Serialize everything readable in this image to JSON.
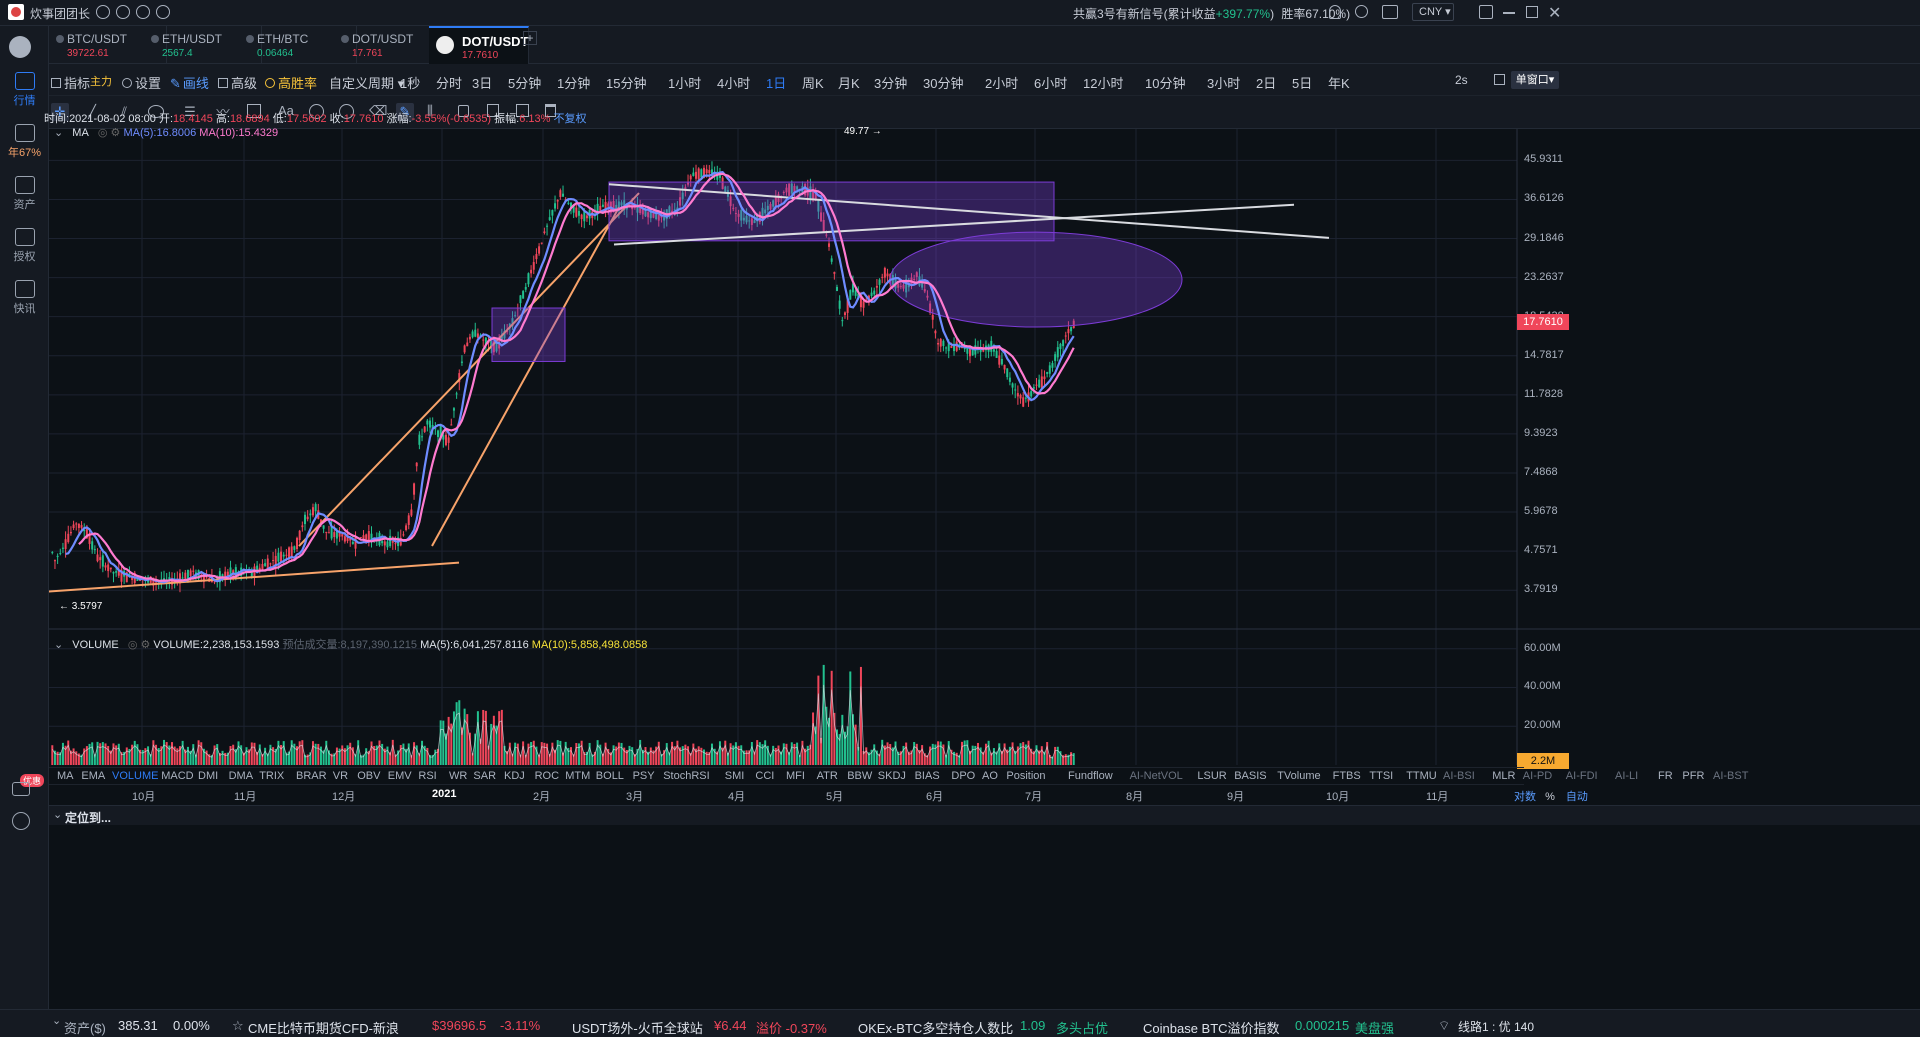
{
  "topbar": {
    "title": "炊事团团长",
    "signal": "共赢3号有新信号(累计收益",
    "signal_gain": "+397.77%",
    "signal_close": ")",
    "winrate": "胜率67.10%)",
    "currency": "CNY"
  },
  "sidebar": {
    "items": [
      {
        "label": "行情"
      },
      {
        "label": "年67%"
      },
      {
        "label": "资产"
      },
      {
        "label": "授权"
      },
      {
        "label": "快讯"
      }
    ],
    "bottom_badge": "优惠"
  },
  "tabs": [
    {
      "name": "BTC/USDT",
      "price": "39722.61",
      "color": "#f0465a"
    },
    {
      "name": "ETH/USDT",
      "price": "2567.4",
      "color": "#22c18f"
    },
    {
      "name": "ETH/BTC",
      "price": "0.06464",
      "color": "#22c18f"
    },
    {
      "name": "DOT/USDT",
      "price": "17.761",
      "color": "#f0465a"
    },
    {
      "name": "DOT/USDT",
      "price": "17.7610",
      "color": "#f0465a"
    }
  ],
  "toolbar1": {
    "indicator": "指标",
    "main": "主力",
    "settings": "设置",
    "draw": "画线",
    "advanced": "高级",
    "winrate": "高胜率",
    "custom_period": "自定义周期",
    "periods": [
      "1秒",
      "分时",
      "3日",
      "5分钟",
      "1分钟",
      "15分钟",
      "1小时",
      "4小时",
      "1日",
      "周K",
      "月K",
      "3分钟",
      "30分钟",
      "2小时",
      "6小时",
      "12小时",
      "10分钟",
      "3小时",
      "2日",
      "5日",
      "年K"
    ],
    "active_period": "1日",
    "refresh": "2s",
    "window": "单窗口"
  },
  "info_line": {
    "time_label": "时间:",
    "time": "2021-08-02 08:00",
    "open_label": "开:",
    "open": "18.4145",
    "high_label": "高:",
    "high": "18.6894",
    "low_label": "低:",
    "low": "17.5602",
    "close_label": "收:",
    "close": "17.7610",
    "change_label": "涨幅:",
    "change": "-3.55%(-0.6535)",
    "amp_label": "振幅:",
    "amp": "6.13%",
    "adjust": "不复权"
  },
  "ma_line": {
    "name": "MA",
    "ma5": "MA(5):16.8006",
    "ma10": "MA(10):15.4329"
  },
  "vol_line": {
    "name": "VOLUME",
    "vol": "VOLUME:2,238,153.1593",
    "estimate": "预估成交量:8,197,390.1215",
    "ma5": "MA(5):6,041,257.8116",
    "ma10": "MA(10):5,858,498.0858"
  },
  "price_axis": [
    "45.9311",
    "36.6126",
    "29.1846",
    "23.2637",
    "18.5438",
    "14.7817",
    "11.7828",
    "9.3923",
    "7.4868",
    "5.9678",
    "4.7571",
    "3.7919"
  ],
  "current_price": "17.7610",
  "annotations": {
    "high": "49.77",
    "low": "3.5797"
  },
  "volume_axis": [
    "60.00M",
    "40.00M",
    "20.00M"
  ],
  "current_volume": "2.2M",
  "indicators": [
    "MA",
    "EMA",
    "VOLUME",
    "MACD",
    "DMI",
    "DMA",
    "TRIX",
    "BRAR",
    "VR",
    "OBV",
    "EMV",
    "RSI",
    "WR",
    "SAR",
    "KDJ",
    "ROC",
    "MTM",
    "BOLL",
    "PSY",
    "StochRSI",
    "SMI",
    "CCI",
    "MFI",
    "ATR",
    "BBW",
    "SKDJ",
    "BIAS",
    "DPO",
    "AO",
    "Position",
    "Fundflow",
    "AI-NetVOL",
    "LSUR",
    "BASIS",
    "TVolume",
    "FTBS",
    "TTSI",
    "TTMU",
    "AI-BSI",
    "MLR",
    "AI-PD",
    "AI-FDI",
    "AI-LI",
    "FR",
    "PFR",
    "AI-BST"
  ],
  "active_indicator": "VOLUME",
  "time_axis": [
    "10月",
    "11月",
    "12月",
    "2021",
    "2月",
    "3月",
    "4月",
    "5月",
    "6月",
    "7月",
    "8月",
    "9月",
    "10月",
    "11月"
  ],
  "axis_options": {
    "log": "对数",
    "pct": "%",
    "auto": "自动"
  },
  "locate": "定位到...",
  "bottombar": {
    "asset_label": "资产($)",
    "asset": "385.31",
    "asset_pct": "0.00%",
    "cme": "CME比特币期货CFD-新浪",
    "cme_price": "$39696.5",
    "cme_pct": "-3.11%",
    "usdt": "USDT场外-火币全球站",
    "usdt_price": "¥6.44",
    "usdt_prem": "溢价 -0.37%",
    "okex": "OKEx-BTC多空持仓人数比",
    "okex_val": "1.09",
    "okex_state": "多头占优",
    "coinbase": "Coinbase BTC溢价指数",
    "coinbase_val": "0.000215",
    "coinbase_state": "美盘强",
    "line": "线路1 : 优 140"
  },
  "colors": {
    "up": "#22c18f",
    "down": "#f0465a",
    "accent": "#2f7cf6",
    "ma5": "#6f8cff",
    "ma10": "#ff7bd0",
    "orange": "#f7a36a",
    "box": "#7c3cd6",
    "white_line": "#d9dbe0"
  },
  "chart_data": {
    "type": "candlestick",
    "symbol": "DOT/USDT",
    "interval": "1日",
    "scale": "log",
    "ylim": [
      3.4,
      52
    ],
    "x_ticks": [
      "10月",
      "11月",
      "12月",
      "2021",
      "2月",
      "3月",
      "4月",
      "5月",
      "6月",
      "7月",
      "8月",
      "9月",
      "10月",
      "11月"
    ],
    "price_path": [
      [
        0,
        6.3
      ],
      [
        3,
        5.2
      ],
      [
        6,
        4.5
      ],
      [
        10,
        5.0
      ],
      [
        14,
        5.6
      ],
      [
        18,
        5.3
      ],
      [
        22,
        4.6
      ],
      [
        28,
        4.2
      ],
      [
        35,
        4.1
      ],
      [
        42,
        4.0
      ],
      [
        50,
        4.0
      ],
      [
        58,
        4.2
      ],
      [
        66,
        4.0
      ],
      [
        72,
        4.2
      ],
      [
        80,
        4.2
      ],
      [
        88,
        4.5
      ],
      [
        96,
        4.8
      ],
      [
        100,
        5.7
      ],
      [
        104,
        6.1
      ],
      [
        108,
        5.3
      ],
      [
        114,
        5.2
      ],
      [
        118,
        5.0
      ],
      [
        124,
        5.2
      ],
      [
        130,
        5.0
      ],
      [
        136,
        5.0
      ],
      [
        140,
        6.0
      ],
      [
        143,
        9.0
      ],
      [
        146,
        10.0
      ],
      [
        150,
        9.5
      ],
      [
        154,
        9.0
      ],
      [
        157,
        12.0
      ],
      [
        160,
        15.5
      ],
      [
        164,
        17.0
      ],
      [
        168,
        16.0
      ],
      [
        172,
        15.5
      ],
      [
        178,
        18.0
      ],
      [
        184,
        23.0
      ],
      [
        190,
        30.0
      ],
      [
        196,
        38.0
      ],
      [
        200,
        35.0
      ],
      [
        205,
        33.0
      ],
      [
        212,
        35.0
      ],
      [
        220,
        35.5
      ],
      [
        228,
        34.0
      ],
      [
        234,
        33.0
      ],
      [
        240,
        35.0
      ],
      [
        245,
        42.0
      ],
      [
        250,
        43.0
      ],
      [
        256,
        42.0
      ],
      [
        262,
        34.0
      ],
      [
        268,
        32.0
      ],
      [
        275,
        35.0
      ],
      [
        282,
        39.0
      ],
      [
        288,
        39.0
      ],
      [
        292,
        37.0
      ],
      [
        296,
        30.0
      ],
      [
        299,
        24.0
      ],
      [
        302,
        18.0
      ],
      [
        306,
        22.0
      ],
      [
        310,
        20.0
      ],
      [
        314,
        21.5
      ],
      [
        318,
        24.0
      ],
      [
        322,
        22.5
      ],
      [
        326,
        22.0
      ],
      [
        330,
        23.5
      ],
      [
        334,
        21.0
      ],
      [
        338,
        16.0
      ],
      [
        342,
        15.5
      ],
      [
        346,
        15.8
      ],
      [
        350,
        15.2
      ],
      [
        354,
        15.4
      ],
      [
        358,
        15.5
      ],
      [
        362,
        14.2
      ],
      [
        366,
        12.5
      ],
      [
        370,
        11.3
      ],
      [
        374,
        12.2
      ],
      [
        378,
        13.0
      ],
      [
        382,
        14.5
      ],
      [
        386,
        16.5
      ],
      [
        389,
        17.76
      ]
    ],
    "high": 49.77,
    "low": 3.5797,
    "last_close": 17.761,
    "volume_axis": [
      "60.00M",
      "40.00M",
      "20.00M"
    ],
    "last_volume": "2.2M"
  }
}
